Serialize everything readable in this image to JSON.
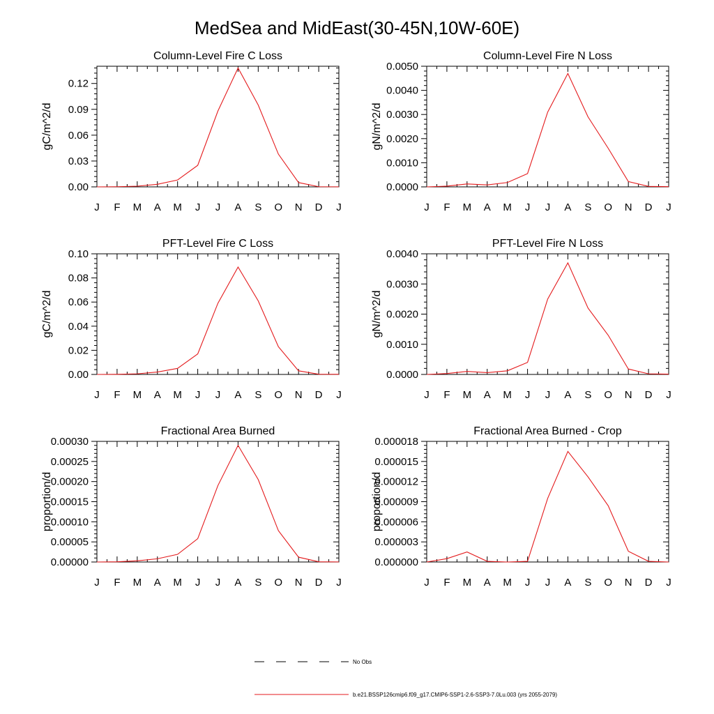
{
  "title": "MedSea and MidEast(30-45N,10W-60E)",
  "chart_data": [
    {
      "type": "line",
      "title": "Column-Level Fire C Loss",
      "ylabel": "gC/m^2/d",
      "x": [
        "J",
        "F",
        "M",
        "A",
        "M",
        "J",
        "J",
        "A",
        "S",
        "O",
        "N",
        "D",
        "J"
      ],
      "ylim": [
        0,
        0.14
      ],
      "yticks": [
        "0.00",
        "0.03",
        "0.06",
        "0.09",
        "0.12"
      ],
      "ytick_values": [
        0,
        0.03,
        0.06,
        0.09,
        0.12
      ],
      "series": [
        {
          "color": "#e41a1c",
          "values": [
            0.0,
            0.0002,
            0.0008,
            0.003,
            0.008,
            0.025,
            0.088,
            0.138,
            0.095,
            0.038,
            0.005,
            0.0002,
            0.0001
          ]
        }
      ]
    },
    {
      "type": "line",
      "title": "Column-Level Fire N Loss",
      "ylabel": "gN/m^2/d",
      "x": [
        "J",
        "F",
        "M",
        "A",
        "M",
        "J",
        "J",
        "A",
        "S",
        "O",
        "N",
        "D",
        "J"
      ],
      "ylim": [
        0,
        0.005
      ],
      "yticks": [
        "0.0000",
        "0.0010",
        "0.0020",
        "0.0030",
        "0.0040",
        "0.0050"
      ],
      "ytick_values": [
        0,
        0.001,
        0.002,
        0.003,
        0.004,
        0.005
      ],
      "series": [
        {
          "color": "#e41a1c",
          "values": [
            0.0,
            3e-05,
            0.00012,
            8e-05,
            0.00018,
            0.00055,
            0.0031,
            0.0047,
            0.0029,
            0.0016,
            0.00022,
            2e-05,
            1e-05
          ]
        }
      ]
    },
    {
      "type": "line",
      "title": "PFT-Level Fire C Loss",
      "ylabel": "gC/m^2/d",
      "x": [
        "J",
        "F",
        "M",
        "A",
        "M",
        "J",
        "J",
        "A",
        "S",
        "O",
        "N",
        "D",
        "J"
      ],
      "ylim": [
        0,
        0.1
      ],
      "yticks": [
        "0.00",
        "0.02",
        "0.04",
        "0.06",
        "0.08",
        "0.10"
      ],
      "ytick_values": [
        0,
        0.02,
        0.04,
        0.06,
        0.08,
        0.1
      ],
      "series": [
        {
          "color": "#e41a1c",
          "values": [
            0.0,
            0.0001,
            0.0005,
            0.002,
            0.005,
            0.017,
            0.059,
            0.089,
            0.061,
            0.023,
            0.003,
            0.0002,
            0.0001
          ]
        }
      ]
    },
    {
      "type": "line",
      "title": "PFT-Level Fire N Loss",
      "ylabel": "gN/m^2/d",
      "x": [
        "J",
        "F",
        "M",
        "A",
        "M",
        "J",
        "J",
        "A",
        "S",
        "O",
        "N",
        "D",
        "J"
      ],
      "ylim": [
        0,
        0.004
      ],
      "yticks": [
        "0.0000",
        "0.0010",
        "0.0020",
        "0.0030",
        "0.0040"
      ],
      "ytick_values": [
        0,
        0.001,
        0.002,
        0.003,
        0.004
      ],
      "series": [
        {
          "color": "#e41a1c",
          "values": [
            0.0,
            3e-05,
            0.0001,
            6e-05,
            0.00012,
            0.0004,
            0.0025,
            0.0037,
            0.0022,
            0.0013,
            0.00018,
            2e-05,
            1e-05
          ]
        }
      ]
    },
    {
      "type": "line",
      "title": "Fractional Area Burned",
      "ylabel": "proportion/d",
      "x": [
        "J",
        "F",
        "M",
        "A",
        "M",
        "J",
        "J",
        "A",
        "S",
        "O",
        "N",
        "D",
        "J"
      ],
      "ylim": [
        0,
        0.0003
      ],
      "yticks": [
        "0.00000",
        "0.00005",
        "0.00010",
        "0.00015",
        "0.00020",
        "0.00025",
        "0.00030"
      ],
      "ytick_values": [
        0,
        5e-05,
        0.0001,
        0.00015,
        0.0002,
        0.00025,
        0.0003
      ],
      "series": [
        {
          "color": "#e41a1c",
          "values": [
            0.0,
            5e-07,
            3e-06,
            8e-06,
            1.9e-05,
            5.8e-05,
            0.00019,
            0.00029,
            0.000205,
            7.8e-05,
            1.2e-05,
            5e-07,
            2e-07
          ]
        }
      ]
    },
    {
      "type": "line",
      "title": "Fractional Area Burned - Crop",
      "ylabel": "proportion/d",
      "x": [
        "J",
        "F",
        "M",
        "A",
        "M",
        "J",
        "J",
        "A",
        "S",
        "O",
        "N",
        "D",
        "J"
      ],
      "ylim": [
        0,
        1.8e-05
      ],
      "yticks": [
        "0.000000",
        "0.000003",
        "0.000006",
        "0.000009",
        "0.000012",
        "0.000015",
        "0.000018"
      ],
      "ytick_values": [
        0,
        3e-06,
        6e-06,
        9e-06,
        1.2e-05,
        1.5e-05,
        1.8e-05
      ],
      "series": [
        {
          "color": "#e41a1c",
          "values": [
            0.0,
            5e-07,
            1.5e-06,
            1e-07,
            0.0,
            1e-07,
            9.5e-06,
            1.65e-05,
            1.27e-05,
            8.4e-06,
            1.6e-06,
            1e-07,
            0.0
          ]
        }
      ]
    }
  ],
  "legend": {
    "items": [
      {
        "label": "No Obs",
        "color": "#000000",
        "dash": true
      },
      {
        "label": "b.e21.BSSP126cmip6.f09_g17.CMIP6-SSP1-2.6-SSP3-7.0Lu.003 (yrs 2055-2079)",
        "color": "#e41a1c",
        "dash": false
      }
    ]
  }
}
